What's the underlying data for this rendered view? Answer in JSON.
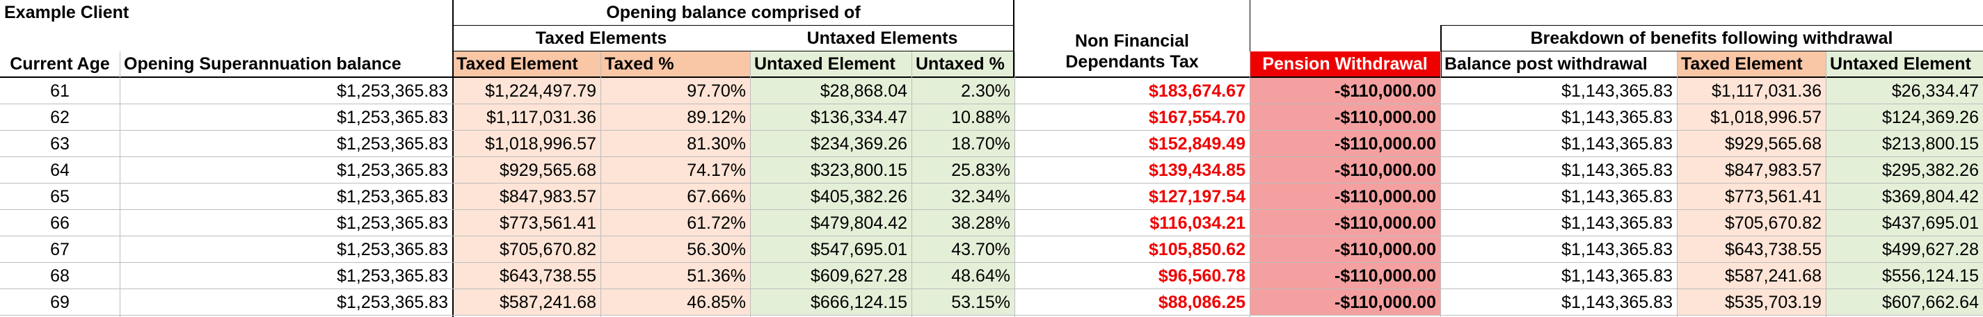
{
  "title": "Example Client",
  "group_headers": {
    "opening": "Opening balance comprised of",
    "taxed": "Taxed Elements",
    "untaxed": "Untaxed Elements",
    "non_financial_line1": "Non Financial",
    "non_financial_line2": "Dependants Tax",
    "breakdown": "Breakdown of benefits following withdrawal"
  },
  "columns": {
    "age": "Current Age",
    "opening": "Opening Superannuation balance",
    "taxed_el": "Taxed Element",
    "taxed_pct": "Taxed %",
    "untaxed_el": "Untaxed Element",
    "untaxed_pct": "Untaxed %",
    "pension": "Pension Withdrawal",
    "post": "Balance post withdrawal",
    "b_taxed": "Taxed Element",
    "b_untaxed": "Untaxed Element"
  },
  "rows": [
    {
      "age": "61",
      "opening": "$1,253,365.83",
      "taxed": "$1,224,497.79",
      "taxed_pct": "97.70%",
      "untaxed": "$28,868.04",
      "untaxed_pct": "2.30%",
      "nfd": "$183,674.67",
      "pension": "-$110,000.00",
      "post": "$1,143,365.83",
      "b_taxed": "$1,117,031.36",
      "b_untaxed": "$26,334.47"
    },
    {
      "age": "62",
      "opening": "$1,253,365.83",
      "taxed": "$1,117,031.36",
      "taxed_pct": "89.12%",
      "untaxed": "$136,334.47",
      "untaxed_pct": "10.88%",
      "nfd": "$167,554.70",
      "pension": "-$110,000.00",
      "post": "$1,143,365.83",
      "b_taxed": "$1,018,996.57",
      "b_untaxed": "$124,369.26"
    },
    {
      "age": "63",
      "opening": "$1,253,365.83",
      "taxed": "$1,018,996.57",
      "taxed_pct": "81.30%",
      "untaxed": "$234,369.26",
      "untaxed_pct": "18.70%",
      "nfd": "$152,849.49",
      "pension": "-$110,000.00",
      "post": "$1,143,365.83",
      "b_taxed": "$929,565.68",
      "b_untaxed": "$213,800.15"
    },
    {
      "age": "64",
      "opening": "$1,253,365.83",
      "taxed": "$929,565.68",
      "taxed_pct": "74.17%",
      "untaxed": "$323,800.15",
      "untaxed_pct": "25.83%",
      "nfd": "$139,434.85",
      "pension": "-$110,000.00",
      "post": "$1,143,365.83",
      "b_taxed": "$847,983.57",
      "b_untaxed": "$295,382.26"
    },
    {
      "age": "65",
      "opening": "$1,253,365.83",
      "taxed": "$847,983.57",
      "taxed_pct": "67.66%",
      "untaxed": "$405,382.26",
      "untaxed_pct": "32.34%",
      "nfd": "$127,197.54",
      "pension": "-$110,000.00",
      "post": "$1,143,365.83",
      "b_taxed": "$773,561.41",
      "b_untaxed": "$369,804.42"
    },
    {
      "age": "66",
      "opening": "$1,253,365.83",
      "taxed": "$773,561.41",
      "taxed_pct": "61.72%",
      "untaxed": "$479,804.42",
      "untaxed_pct": "38.28%",
      "nfd": "$116,034.21",
      "pension": "-$110,000.00",
      "post": "$1,143,365.83",
      "b_taxed": "$705,670.82",
      "b_untaxed": "$437,695.01"
    },
    {
      "age": "67",
      "opening": "$1,253,365.83",
      "taxed": "$705,670.82",
      "taxed_pct": "56.30%",
      "untaxed": "$547,695.01",
      "untaxed_pct": "43.70%",
      "nfd": "$105,850.62",
      "pension": "-$110,000.00",
      "post": "$1,143,365.83",
      "b_taxed": "$643,738.55",
      "b_untaxed": "$499,627.28"
    },
    {
      "age": "68",
      "opening": "$1,253,365.83",
      "taxed": "$643,738.55",
      "taxed_pct": "51.36%",
      "untaxed": "$609,627.28",
      "untaxed_pct": "48.64%",
      "nfd": "$96,560.78",
      "pension": "-$110,000.00",
      "post": "$1,143,365.83",
      "b_taxed": "$587,241.68",
      "b_untaxed": "$556,124.15"
    },
    {
      "age": "69",
      "opening": "$1,253,365.83",
      "taxed": "$587,241.68",
      "taxed_pct": "46.85%",
      "untaxed": "$666,124.15",
      "untaxed_pct": "53.15%",
      "nfd": "$88,086.25",
      "pension": "-$110,000.00",
      "post": "$1,143,365.83",
      "b_taxed": "$535,703.19",
      "b_untaxed": "$607,662.64"
    }
  ]
}
